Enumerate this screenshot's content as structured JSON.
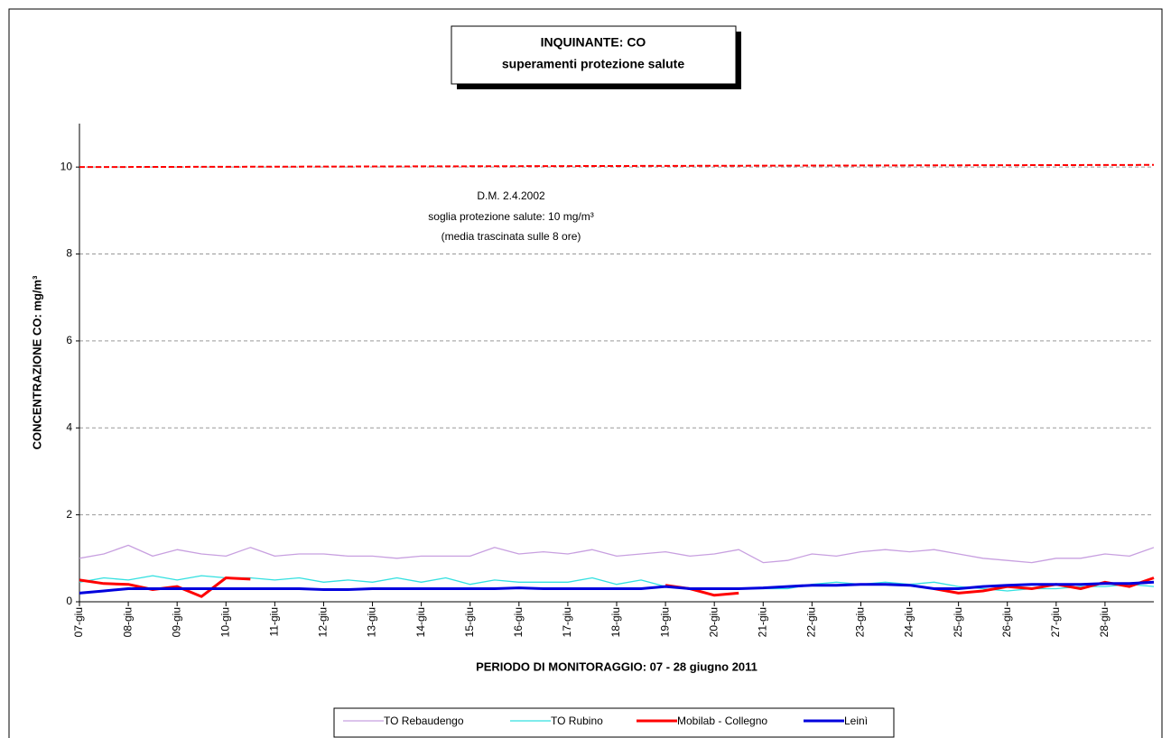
{
  "chart_data": {
    "type": "line",
    "title": [
      "INQUINANTE: CO",
      "superamenti protezione salute"
    ],
    "y_label": "CONCENTRAZIONE CO: mg/m³",
    "x_label": "PERIODO DI MONITORAGGIO: 07 - 28 giugno 2011",
    "annotation": [
      "D.M. 2.4.2002",
      "soglia protezione salute: 10 mg/m³",
      "(media trascinata sulle 8 ore)"
    ],
    "categories": [
      "07-giu",
      null,
      "08-giu",
      null,
      "09-giu",
      null,
      "10-giu",
      null,
      "11-giu",
      null,
      "12-giu",
      null,
      "13-giu",
      null,
      "14-giu",
      null,
      "15-giu",
      null,
      "16-giu",
      null,
      "17-giu",
      null,
      "18-giu",
      null,
      "19-giu",
      null,
      "20-giu",
      null,
      "21-giu",
      null,
      "22-giu",
      null,
      "23-giu",
      null,
      "24-giu",
      null,
      "25-giu",
      null,
      "26-giu",
      null,
      "27-giu",
      null,
      "28-giu",
      null,
      null
    ],
    "ylim": [
      0,
      11
    ],
    "yticks": [
      0,
      2,
      4,
      6,
      8,
      10
    ],
    "grid": true,
    "threshold": {
      "values": [
        10,
        10.05
      ],
      "color": "#ff0000"
    },
    "series": [
      {
        "name": "TO Rebaudengo",
        "color": "#c8a0e0",
        "width": 1.3,
        "values": [
          1.0,
          1.1,
          1.3,
          1.05,
          1.2,
          1.1,
          1.05,
          1.25,
          1.05,
          1.1,
          1.1,
          1.05,
          1.05,
          1.0,
          1.05,
          1.05,
          1.05,
          1.25,
          1.1,
          1.15,
          1.1,
          1.2,
          1.05,
          1.1,
          1.15,
          1.05,
          1.1,
          1.2,
          0.9,
          0.95,
          1.1,
          1.05,
          1.15,
          1.2,
          1.15,
          1.2,
          1.1,
          1.0,
          0.95,
          0.9,
          1.0,
          1.0,
          1.1,
          1.05,
          1.25
        ]
      },
      {
        "name": "TO Rubino",
        "color": "#33e0e0",
        "width": 1.3,
        "values": [
          0.45,
          0.55,
          0.5,
          0.6,
          0.5,
          0.6,
          0.55,
          0.55,
          0.5,
          0.55,
          0.45,
          0.5,
          0.45,
          0.55,
          0.45,
          0.55,
          0.4,
          0.5,
          0.45,
          0.45,
          0.45,
          0.55,
          0.4,
          0.5,
          0.35,
          0.3,
          0.3,
          0.3,
          0.3,
          0.3,
          0.4,
          0.45,
          0.4,
          0.45,
          0.4,
          0.45,
          0.35,
          0.3,
          0.25,
          0.3,
          0.3,
          0.35,
          0.35,
          0.4,
          0.35
        ]
      },
      {
        "name": "Mobilab - Collegno",
        "color": "#ff0000",
        "width": 3,
        "values": [
          0.5,
          0.42,
          0.4,
          0.28,
          0.35,
          0.12,
          0.55,
          0.52,
          null,
          null,
          null,
          null,
          null,
          null,
          null,
          null,
          null,
          null,
          null,
          null,
          null,
          null,
          null,
          null,
          0.38,
          0.3,
          0.15,
          0.2,
          null,
          null,
          null,
          null,
          null,
          null,
          null,
          0.3,
          0.2,
          0.25,
          0.35,
          0.3,
          0.4,
          0.3,
          0.45,
          0.35,
          0.55
        ]
      },
      {
        "name": "Leinì",
        "color": "#0000dd",
        "width": 3,
        "values": [
          0.2,
          0.25,
          0.3,
          0.3,
          0.3,
          0.3,
          0.3,
          0.3,
          0.3,
          0.3,
          0.28,
          0.28,
          0.3,
          0.3,
          0.3,
          0.3,
          0.3,
          0.3,
          0.32,
          0.3,
          0.3,
          0.3,
          0.3,
          0.3,
          0.35,
          0.3,
          0.3,
          0.3,
          0.32,
          0.35,
          0.38,
          0.38,
          0.4,
          0.4,
          0.38,
          0.3,
          0.3,
          0.35,
          0.38,
          0.4,
          0.4,
          0.4,
          0.42,
          0.42,
          0.45
        ]
      }
    ]
  }
}
